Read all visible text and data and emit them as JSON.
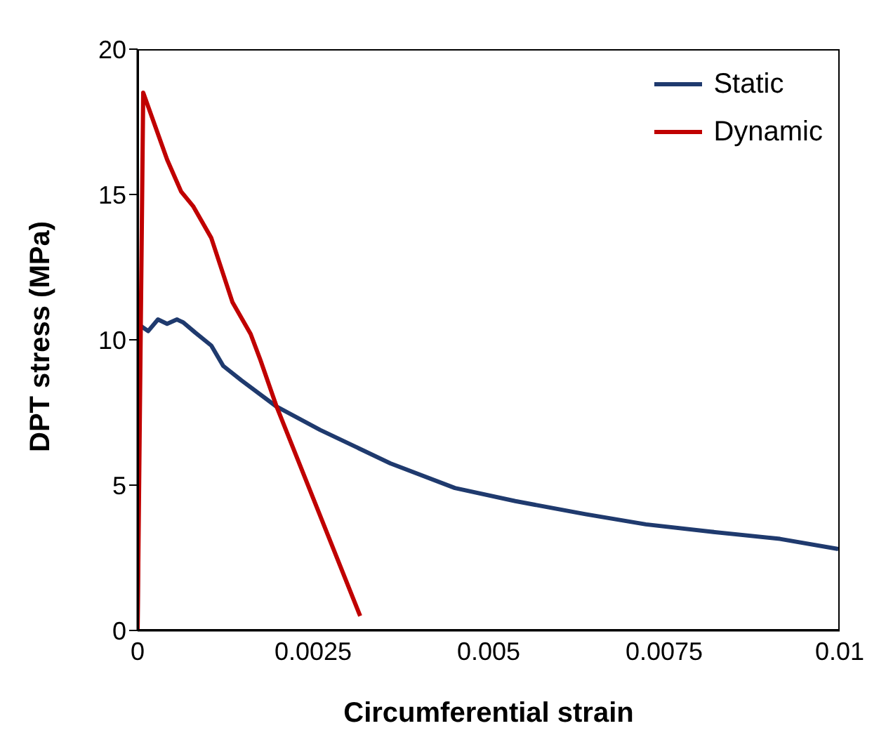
{
  "chart_data": {
    "type": "line",
    "xlabel": "Circumferential strain",
    "ylabel": "DPT stress (MPa)",
    "xlim": [
      0,
      0.01
    ],
    "xticks": [
      0,
      0.0025,
      0.005,
      0.0075,
      0.01
    ],
    "ylim": [
      0,
      20
    ],
    "yticks": [
      0,
      5,
      10,
      15,
      20
    ],
    "grid": false,
    "legend": "top right",
    "marker": "none",
    "line_style": "solid",
    "series": [
      {
        "name": "Static",
        "color": "#1f3a6e",
        "x": [
          0,
          2e-05,
          3e-05,
          0.00015,
          0.00029,
          0.00042,
          0.00056,
          0.00065,
          0.00082,
          0.00105,
          0.00122,
          0.00148,
          0.00198,
          0.0026,
          0.0036,
          0.00452,
          0.00538,
          0.00638,
          0.00724,
          0.00816,
          0.00915,
          0.00998
        ],
        "values": [
          0,
          10.5,
          10.5,
          10.3,
          10.7,
          10.55,
          10.7,
          10.6,
          10.25,
          9.8,
          9.1,
          8.6,
          7.7,
          6.9,
          5.75,
          4.9,
          4.45,
          4.0,
          3.65,
          3.4,
          3.15,
          2.8
        ]
      },
      {
        "name": "Dynamic",
        "color": "#c00000",
        "x": [
          0,
          8e-05,
          0.00042,
          0.00062,
          0.00079,
          0.00105,
          0.00135,
          0.00161,
          0.00175,
          0.00198,
          0.00317
        ],
        "values": [
          0,
          18.5,
          16.2,
          15.1,
          14.6,
          13.5,
          11.3,
          10.2,
          9.3,
          7.7,
          0.5
        ]
      }
    ]
  }
}
